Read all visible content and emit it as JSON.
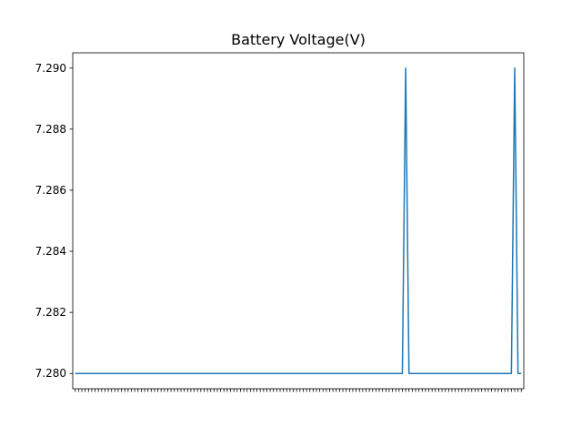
{
  "chart_data": {
    "type": "line",
    "title": "Battery Voltage(V)",
    "xlabel": "",
    "ylabel": "",
    "ylim": [
      7.2795,
      7.2905
    ],
    "yticks": [
      "7.280",
      "7.282",
      "7.284",
      "7.286",
      "7.288",
      "7.290"
    ],
    "x_tick_count": 136,
    "x_label_note": "x tick labels overlap and are illegible",
    "x_tick_labels": [],
    "series": [
      {
        "name": "",
        "color": "#1f77b4",
        "values": [
          7.28,
          7.28,
          7.28,
          7.28,
          7.28,
          7.28,
          7.28,
          7.28,
          7.28,
          7.28,
          7.28,
          7.28,
          7.28,
          7.28,
          7.28,
          7.28,
          7.28,
          7.28,
          7.28,
          7.28,
          7.28,
          7.28,
          7.28,
          7.28,
          7.28,
          7.28,
          7.28,
          7.28,
          7.28,
          7.28,
          7.28,
          7.28,
          7.28,
          7.28,
          7.28,
          7.28,
          7.28,
          7.28,
          7.28,
          7.28,
          7.28,
          7.28,
          7.28,
          7.28,
          7.28,
          7.28,
          7.28,
          7.28,
          7.28,
          7.28,
          7.28,
          7.28,
          7.28,
          7.28,
          7.28,
          7.28,
          7.28,
          7.28,
          7.28,
          7.28,
          7.28,
          7.28,
          7.28,
          7.28,
          7.28,
          7.28,
          7.28,
          7.28,
          7.28,
          7.28,
          7.28,
          7.28,
          7.28,
          7.28,
          7.28,
          7.28,
          7.28,
          7.28,
          7.28,
          7.28,
          7.28,
          7.28,
          7.28,
          7.28,
          7.28,
          7.28,
          7.28,
          7.28,
          7.28,
          7.28,
          7.28,
          7.28,
          7.28,
          7.28,
          7.28,
          7.28,
          7.28,
          7.28,
          7.28,
          7.28,
          7.29,
          7.28,
          7.28,
          7.28,
          7.28,
          7.28,
          7.28,
          7.28,
          7.28,
          7.28,
          7.28,
          7.28,
          7.28,
          7.28,
          7.28,
          7.28,
          7.28,
          7.28,
          7.28,
          7.28,
          7.28,
          7.28,
          7.28,
          7.28,
          7.28,
          7.28,
          7.28,
          7.28,
          7.28,
          7.28,
          7.28,
          7.28,
          7.28,
          7.29,
          7.28,
          7.28
        ]
      }
    ],
    "grid": false,
    "legend": "none"
  }
}
